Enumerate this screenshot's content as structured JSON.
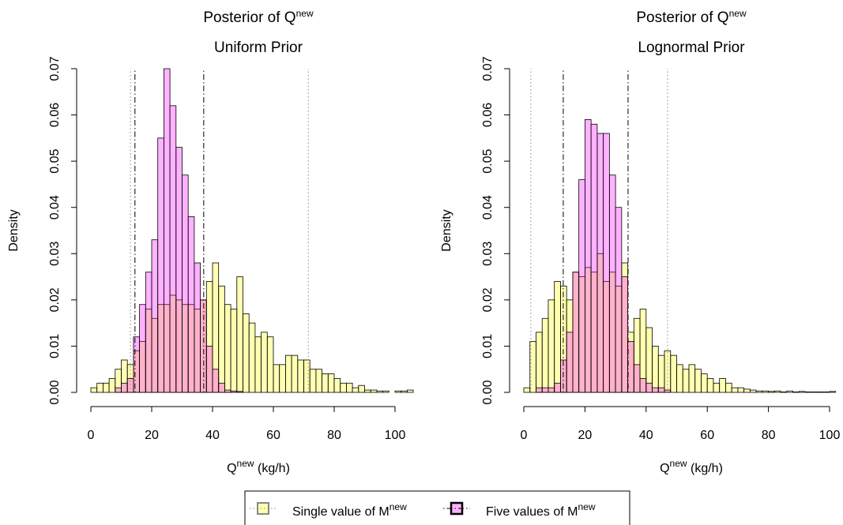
{
  "chart_data": [
    {
      "type": "histogram",
      "title": {
        "main": "Posterior of Q",
        "superscript": "new"
      },
      "subtitle": "Uniform Prior",
      "x_label": {
        "main": "Q",
        "superscript": "new",
        "unit": " (kg/h)"
      },
      "y_label": "Density",
      "bins": [
        0,
        2,
        4,
        6,
        8,
        10,
        12,
        14,
        16,
        18,
        20,
        22,
        24,
        26,
        28,
        30,
        32,
        34,
        36,
        38,
        40,
        42,
        44,
        46,
        48,
        50,
        52,
        54,
        56,
        58,
        60,
        62,
        64,
        66,
        68,
        70,
        72,
        74,
        76,
        78,
        80,
        82,
        84,
        86,
        88,
        90,
        92,
        94,
        96,
        98,
        100,
        102,
        104,
        106
      ],
      "xlim": [
        0,
        100
      ],
      "xticks": [
        0,
        20,
        40,
        60,
        80,
        100
      ],
      "ylim": [
        0,
        0.07
      ],
      "yticks": [
        {
          "value": 0,
          "label": "0.00"
        },
        0.01,
        0.02,
        0.03,
        0.04,
        0.05,
        0.06,
        0.07
      ],
      "series": [
        {
          "color": "#ffff00",
          "alpha": 0.3,
          "interval": [
            13,
            71.5
          ],
          "interval_style": "dotted",
          "interval_color": "#888888",
          "values": [
            0.001,
            0.002,
            0.002,
            0.003,
            0.005,
            0.007,
            0.006,
            0.009,
            0.011,
            0.018,
            0.016,
            0.019,
            0.019,
            0.021,
            0.02,
            0.019,
            0.019,
            0.018,
            0.02,
            0.024,
            0.028,
            0.023,
            0.019,
            0.018,
            0.025,
            0.017,
            0.015,
            0.012,
            0.013,
            0.012,
            0.006,
            0.006,
            0.008,
            0.008,
            0.007,
            0.007,
            0.005,
            0.005,
            0.004,
            0.004,
            0.003,
            0.002,
            0.002,
            0.001,
            0.0015,
            0.0005,
            0.0005,
            0.0003,
            0.0003,
            0,
            0.0003,
            0.0003,
            0.0005
          ]
        },
        {
          "color": "#ff00ff",
          "alpha": 0.3,
          "interval": [
            14.5,
            37.1
          ],
          "interval_style": "dotdash",
          "interval_color": "#000000",
          "values": [
            0,
            0,
            0,
            0,
            0.001,
            0.002,
            0.003,
            0.012,
            0.019,
            0.026,
            0.033,
            0.055,
            0.07,
            0.062,
            0.053,
            0.047,
            0.038,
            0.028,
            0.02,
            0.01,
            0.005,
            0.002,
            0.0005,
            0.0003,
            0.0002,
            0,
            0,
            0,
            0,
            0,
            0,
            0,
            0,
            0,
            0,
            0,
            0,
            0,
            0,
            0,
            0,
            0,
            0,
            0,
            0,
            0,
            0,
            0,
            0,
            0,
            0,
            0,
            0
          ]
        }
      ]
    },
    {
      "type": "histogram",
      "title": {
        "main": "Posterior of Q",
        "superscript": "new"
      },
      "subtitle": "Lognormal Prior",
      "x_label": {
        "main": "Q",
        "superscript": "new",
        "unit": " (kg/h)"
      },
      "y_label": "Density",
      "bins": [
        0,
        2,
        4,
        6,
        8,
        10,
        12,
        14,
        16,
        18,
        20,
        22,
        24,
        26,
        28,
        30,
        32,
        34,
        36,
        38,
        40,
        42,
        44,
        46,
        48,
        50,
        52,
        54,
        56,
        58,
        60,
        62,
        64,
        66,
        68,
        70,
        72,
        74,
        76,
        78,
        80,
        82,
        84,
        86,
        88,
        90,
        92,
        94,
        96,
        98,
        100,
        102
      ],
      "xlim": [
        0,
        100
      ],
      "xticks": [
        0,
        20,
        40,
        60,
        80,
        100
      ],
      "ylim": [
        0,
        0.07
      ],
      "yticks": [
        {
          "value": 0,
          "label": "0.00"
        },
        0.01,
        0.02,
        0.03,
        0.04,
        0.05,
        0.06,
        0.07
      ],
      "series": [
        {
          "color": "#ffff00",
          "alpha": 0.3,
          "interval": [
            2.3,
            47
          ],
          "interval_style": "dotted",
          "interval_color": "#888888",
          "values": [
            0.001,
            0.011,
            0.013,
            0.016,
            0.02,
            0.024,
            0.023,
            0.02,
            0.026,
            0.025,
            0.027,
            0.026,
            0.03,
            0.024,
            0.026,
            0.023,
            0.028,
            0.013,
            0.016,
            0.018,
            0.014,
            0.01,
            0.008,
            0.009,
            0.008,
            0.006,
            0.005,
            0.006,
            0.005,
            0.004,
            0.003,
            0.002,
            0.003,
            0.002,
            0.001,
            0.001,
            0.0007,
            0.0005,
            0.0003,
            0.0003,
            0.0002,
            0.0003,
            0.0001,
            0.0003,
            0.0001,
            0.0002,
            0.0001,
            0.0001,
            0.0001,
            0.0001,
            0.0002
          ]
        },
        {
          "color": "#ff00ff",
          "alpha": 0.3,
          "interval": [
            12.9,
            34.1
          ],
          "interval_style": "dotdash",
          "interval_color": "#000000",
          "values": [
            0,
            0,
            0.001,
            0.001,
            0.001,
            0.002,
            0.007,
            0.013,
            0.026,
            0.046,
            0.059,
            0.058,
            0.056,
            0.056,
            0.047,
            0.04,
            0.025,
            0.011,
            0.006,
            0.003,
            0.002,
            0.001,
            0.001,
            0.0005,
            0,
            0,
            0,
            0,
            0,
            0,
            0,
            0,
            0,
            0,
            0,
            0,
            0,
            0,
            0,
            0,
            0,
            0,
            0,
            0,
            0,
            0,
            0,
            0,
            0,
            0,
            0
          ]
        }
      ]
    }
  ],
  "legend": {
    "entries": [
      {
        "main": "Single value of M",
        "superscript": "new"
      },
      {
        "main": "Five values of M",
        "superscript": "new"
      }
    ]
  }
}
